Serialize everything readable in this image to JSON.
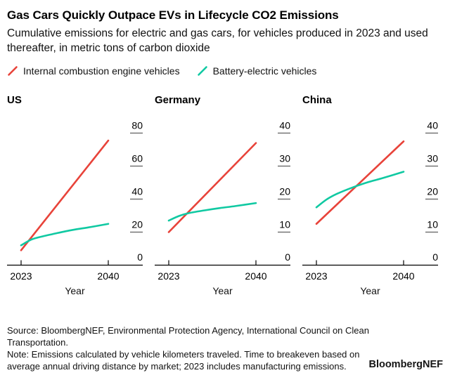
{
  "header": {
    "title": "Gas Cars Quickly Outpace EVs in Lifecycle CO2 Emissions",
    "subtitle": "Cumulative emissions for electric and gas cars, for vehicles produced in 2023 and used thereafter, in metric tons of carbon dioxide"
  },
  "legend": {
    "items": [
      {
        "label": "Internal combustion engine vehicles",
        "color": "#e8433a"
      },
      {
        "label": "Battery-electric vehicles",
        "color": "#10c9a2"
      }
    ]
  },
  "colors": {
    "ice": "#e8433a",
    "bev": "#10c9a2",
    "axis": "#000000",
    "tick_dash": "#757575",
    "text": "#111111"
  },
  "chart_data": [
    {
      "type": "line",
      "title": "US",
      "xlabel": "Year",
      "xlim": [
        2023,
        2040
      ],
      "x_ticks": [
        "2023",
        "2040"
      ],
      "ylim": [
        0,
        85
      ],
      "y_ticks": [
        0,
        20,
        40,
        60,
        80
      ],
      "grid": false,
      "legend_position": "top",
      "series": [
        {
          "name": "Internal combustion engine vehicles",
          "color": "#e8433a",
          "x": [
            2023,
            2040
          ],
          "y": [
            9,
            75.5
          ]
        },
        {
          "name": "Battery-electric vehicles",
          "color": "#10c9a2",
          "x": [
            2023,
            2025,
            2027,
            2030,
            2033,
            2036,
            2040
          ],
          "y": [
            12,
            15.5,
            17.3,
            19.4,
            21.3,
            22.8,
            25
          ]
        }
      ]
    },
    {
      "type": "line",
      "title": "Germany",
      "xlabel": "Year",
      "xlim": [
        2023,
        2040
      ],
      "x_ticks": [
        "2023",
        "2040"
      ],
      "ylim": [
        0,
        42.5
      ],
      "y_ticks": [
        0,
        10,
        20,
        30,
        40
      ],
      "grid": false,
      "legend_position": "top",
      "series": [
        {
          "name": "Internal combustion engine vehicles",
          "color": "#e8433a",
          "x": [
            2023,
            2040
          ],
          "y": [
            10,
            37
          ]
        },
        {
          "name": "Battery-electric vehicles",
          "color": "#10c9a2",
          "x": [
            2023,
            2025,
            2027,
            2030,
            2033,
            2036,
            2040
          ],
          "y": [
            13.5,
            14.9,
            15.8,
            16.6,
            17.3,
            17.9,
            18.8
          ]
        }
      ]
    },
    {
      "type": "line",
      "title": "China",
      "xlabel": "Year",
      "xlim": [
        2023,
        2040
      ],
      "x_ticks": [
        "2023",
        "2040"
      ],
      "ylim": [
        0,
        42.5
      ],
      "y_ticks": [
        0,
        10,
        20,
        30,
        40
      ],
      "grid": false,
      "legend_position": "top",
      "series": [
        {
          "name": "Internal combustion engine vehicles",
          "color": "#e8433a",
          "x": [
            2023,
            2040
          ],
          "y": [
            12.5,
            37.5
          ]
        },
        {
          "name": "Battery-electric vehicles",
          "color": "#10c9a2",
          "x": [
            2023,
            2025,
            2027,
            2030,
            2033,
            2036,
            2040
          ],
          "y": [
            17.5,
            19.9,
            21.6,
            23.5,
            25.1,
            26.4,
            28.3
          ]
        }
      ]
    }
  ],
  "footer": {
    "source": "Source: BloombergNEF, Environmental Protection Agency, International Council on Clean Transportation.",
    "note": "Note: Emissions calculated by vehicle kilometers traveled. Time to breakeven based on average annual driving distance by market; 2023 includes manufacturing emissions.",
    "logo": "BloombergNEF"
  }
}
